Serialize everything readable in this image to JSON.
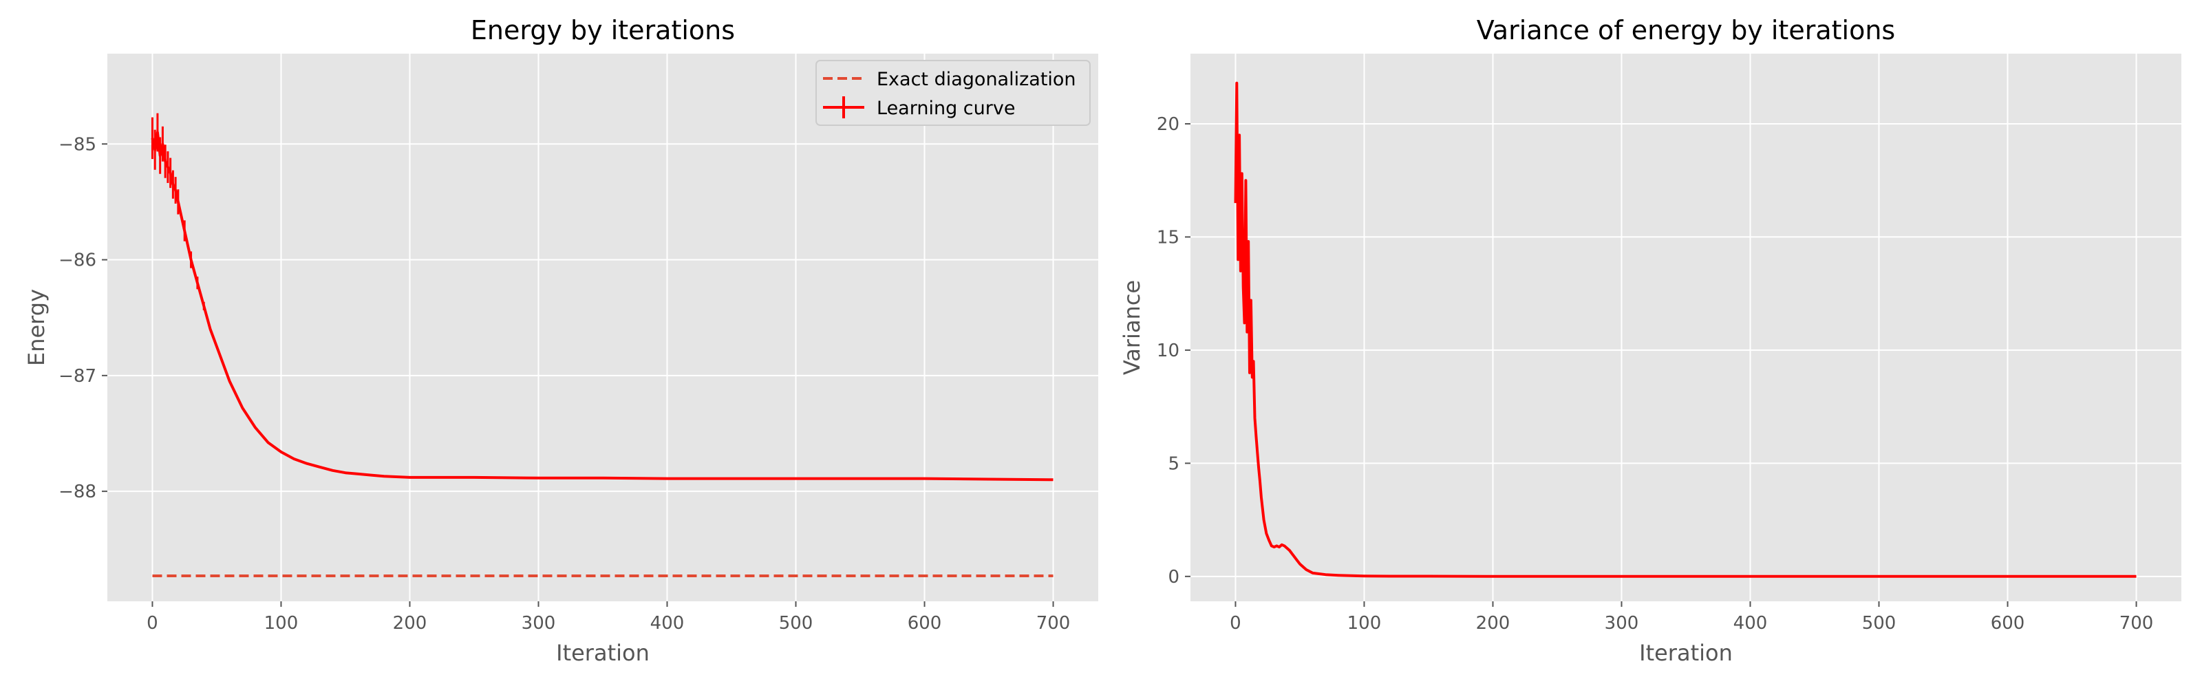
{
  "chart_data": [
    {
      "type": "line",
      "title": "Energy by iterations",
      "xlabel": "Iteration",
      "ylabel": "Energy",
      "xlim": [
        -35,
        735
      ],
      "ylim": [
        -88.95,
        -84.22
      ],
      "xticks": [
        0,
        100,
        200,
        300,
        400,
        500,
        600,
        700
      ],
      "yticks": [
        -88,
        -87,
        -86,
        -85
      ],
      "grid": true,
      "legend_position": "top-right",
      "series": [
        {
          "name": "Exact diagonalization",
          "style": "dashed",
          "color": "#e24a33",
          "x": [
            0,
            700
          ],
          "y": [
            -88.73,
            -88.73
          ]
        },
        {
          "name": "Learning curve",
          "style": "solid-errorbar",
          "color": "#ff0000",
          "x": [
            0,
            2,
            4,
            6,
            8,
            10,
            12,
            14,
            16,
            18,
            20,
            25,
            30,
            35,
            40,
            45,
            50,
            60,
            70,
            80,
            90,
            100,
            110,
            120,
            130,
            140,
            150,
            160,
            170,
            180,
            200,
            250,
            300,
            350,
            400,
            450,
            500,
            550,
            600,
            650,
            700
          ],
          "y": [
            -84.95,
            -85.05,
            -84.9,
            -85.1,
            -85.0,
            -85.15,
            -85.2,
            -85.25,
            -85.35,
            -85.4,
            -85.5,
            -85.75,
            -86.0,
            -86.2,
            -86.4,
            -86.6,
            -86.75,
            -87.05,
            -87.28,
            -87.45,
            -87.58,
            -87.66,
            -87.72,
            -87.76,
            -87.79,
            -87.82,
            -87.84,
            -87.85,
            -87.86,
            -87.87,
            -87.88,
            -87.88,
            -87.885,
            -87.885,
            -87.89,
            -87.89,
            -87.89,
            -87.89,
            -87.89,
            -87.895,
            -87.9
          ]
        }
      ]
    },
    {
      "type": "line",
      "title": "Variance of energy by iterations",
      "xlabel": "Iteration",
      "ylabel": "Variance",
      "xlim": [
        -35,
        735
      ],
      "ylim": [
        -1.1,
        23.1
      ],
      "xticks": [
        0,
        100,
        200,
        300,
        400,
        500,
        600,
        700
      ],
      "yticks": [
        0,
        5,
        10,
        15,
        20
      ],
      "grid": true,
      "series": [
        {
          "name": "",
          "style": "solid",
          "color": "#ff0000",
          "x": [
            0,
            1,
            2,
            3,
            4,
            5,
            6,
            7,
            8,
            9,
            10,
            11,
            12,
            13,
            14,
            15,
            16,
            17,
            18,
            19,
            20,
            22,
            24,
            26,
            28,
            30,
            32,
            34,
            36,
            38,
            40,
            42,
            44,
            46,
            48,
            50,
            55,
            60,
            70,
            80,
            90,
            100,
            120,
            150,
            200,
            300,
            400,
            500,
            600,
            700
          ],
          "y": [
            16.5,
            21.8,
            14.0,
            19.5,
            13.5,
            17.8,
            12.8,
            11.2,
            17.5,
            10.8,
            14.8,
            9.0,
            12.2,
            8.8,
            9.5,
            7.0,
            6.2,
            5.5,
            4.8,
            4.2,
            3.5,
            2.5,
            1.9,
            1.6,
            1.35,
            1.3,
            1.35,
            1.3,
            1.4,
            1.35,
            1.25,
            1.15,
            1.0,
            0.85,
            0.7,
            0.55,
            0.3,
            0.15,
            0.08,
            0.05,
            0.03,
            0.02,
            0.01,
            0.01,
            0.0,
            0.0,
            0.0,
            0.0,
            0.0,
            0.0
          ]
        }
      ]
    }
  ]
}
